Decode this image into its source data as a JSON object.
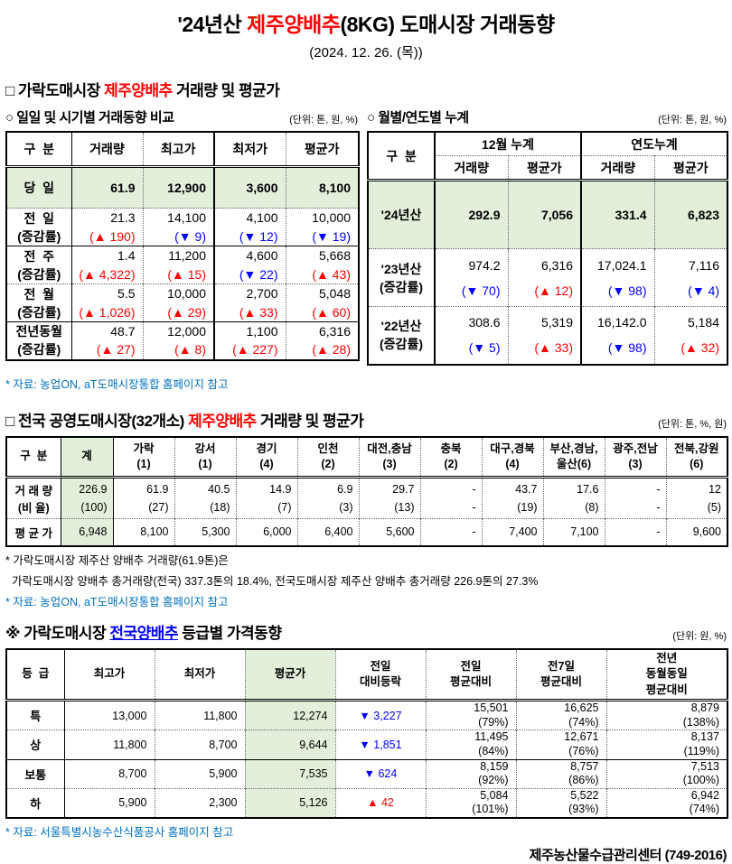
{
  "colors": {
    "accent_red": "#ff0000",
    "link_blue": "#0000ff",
    "note_blue": "#0070c0",
    "green_bg": "#e2efda",
    "change_up": "#ff0000",
    "change_down": "#0000ff"
  },
  "title": {
    "prefix": "'24년산 ",
    "highlight": "제주양배추",
    "suffix": "(8KG) 도매시장 거래동향",
    "date": "(2024. 12. 26. (목))"
  },
  "section1": {
    "heading_prefix": "□ 가락도매시장 ",
    "heading_highlight": "제주양배추",
    "heading_suffix": " 거래량 및 평균가",
    "daily": {
      "subtitle": "○ 일일 및 시기별 거래동향 비교",
      "unit": "(단위: 톤, 원, %)",
      "columns": [
        "구  분",
        "거래량",
        "최고가",
        "최저가",
        "평균가"
      ],
      "rows": [
        {
          "label": "당  일",
          "sub": null,
          "values": [
            "61.9",
            "12,900",
            "3,600",
            "8,100"
          ],
          "changes": null,
          "green": true
        },
        {
          "label": "전  일",
          "sub": "(증감률)",
          "values": [
            "21.3",
            "14,100",
            "4,100",
            "10,000"
          ],
          "changes": [
            "(▲ 190)",
            "(▼ 9)",
            "(▼ 12)",
            "(▼ 19)"
          ]
        },
        {
          "label": "전  주",
          "sub": "(증감률)",
          "values": [
            "1.4",
            "11,200",
            "4,600",
            "5,668"
          ],
          "changes": [
            "(▲ 4,322)",
            "(▲ 15)",
            "(▼ 22)",
            "(▲ 43)"
          ],
          "sep": "solid"
        },
        {
          "label": "전  월",
          "sub": "(증감률)",
          "values": [
            "5.5",
            "10,000",
            "2,700",
            "5,048"
          ],
          "changes": [
            "(▲ 1,026)",
            "(▲ 29)",
            "(▲ 33)",
            "(▲ 60)"
          ]
        },
        {
          "label": "전년동월",
          "sub": "(증감률)",
          "values": [
            "48.7",
            "12,000",
            "1,100",
            "6,316"
          ],
          "changes": [
            "(▲ 27)",
            "(▲ 8)",
            "(▲ 227)",
            "(▲ 28)"
          ],
          "sep": "solid"
        }
      ]
    },
    "cumulative": {
      "subtitle": "○ 월별/연도별 누계",
      "unit": "(단위: 톤, 원, %)",
      "header_label": "구  분",
      "group1": "12월 누계",
      "group2": "연도누계",
      "sub_columns": [
        "거래량",
        "평균가",
        "거래량",
        "평균가"
      ],
      "rows": [
        {
          "label": "'24년산",
          "sub": null,
          "values": [
            "292.9",
            "7,056",
            "331.4",
            "6,823"
          ],
          "changes": null,
          "green": true
        },
        {
          "label": "'23년산",
          "sub": "(증감률)",
          "values": [
            "974.2",
            "6,316",
            "17,024.1",
            "7,116"
          ],
          "changes": [
            "(▼ 70)",
            "(▲ 12)",
            "(▼ 98)",
            "(▼ 4)"
          ]
        },
        {
          "label": "'22년산",
          "sub": "(증감률)",
          "values": [
            "308.6",
            "5,319",
            "16,142.0",
            "5,184"
          ],
          "changes": [
            "(▼ 5)",
            "(▲ 33)",
            "(▼ 98)",
            "(▲ 32)"
          ]
        }
      ]
    },
    "source_note": "* 자료: 농업ON, aT도매시장통합 홈페이지 참고"
  },
  "section2": {
    "heading_prefix": "□ 전국 공영도매시장(32개소) ",
    "heading_highlight": "제주양배추",
    "heading_suffix": " 거래량 및 평균가",
    "unit": "(단위: 톤, %, 원)",
    "columns": [
      {
        "l1": "구  분",
        "l2": null
      },
      {
        "l1": "계",
        "l2": null,
        "green": true
      },
      {
        "l1": "가락",
        "l2": "(1)"
      },
      {
        "l1": "강서",
        "l2": "(1)"
      },
      {
        "l1": "경기",
        "l2": "(4)"
      },
      {
        "l1": "인천",
        "l2": "(2)"
      },
      {
        "l1": "대전,충남",
        "l2": "(3)"
      },
      {
        "l1": "충북",
        "l2": "(2)"
      },
      {
        "l1": "대구,경북",
        "l2": "(4)"
      },
      {
        "l1": "부산,경남,",
        "l2": "울산(6)"
      },
      {
        "l1": "광주,전남",
        "l2": "(3)"
      },
      {
        "l1": "전북,강원",
        "l2": "(6)"
      }
    ],
    "volume_row": {
      "label": "거 래 량",
      "sub": "(비 율)",
      "values": [
        "226.9",
        "61.9",
        "40.5",
        "14.9",
        "6.9",
        "29.7",
        "-",
        "43.7",
        "17.6",
        "-",
        "12"
      ],
      "ratios": [
        "(100)",
        "(27)",
        "(18)",
        "(7)",
        "(3)",
        "(13)",
        "-",
        "(19)",
        "(8)",
        "-",
        "(5)"
      ]
    },
    "avg_row": {
      "label": "평 균 가",
      "values": [
        "6,948",
        "8,100",
        "5,300",
        "6,000",
        "6,400",
        "5,600",
        "-",
        "7,400",
        "7,100",
        "-",
        "9,600"
      ]
    },
    "note_line1": "* 가락도매시장 제주산 양배추 거래량(61.9톤)은",
    "note_line2": "  가락도매시장 양배추 총거래량(전국) 337.3톤의 18.4%, 전국도매시장 제주산 양배추 총거래량 226.9톤의 27.3%",
    "source_note": "* 자료: 농업ON, aT도매시장통합 홈페이지 참고"
  },
  "section3": {
    "heading_prefix": "※ 가락도매시장 ",
    "heading_link": "전국양배추",
    "heading_suffix": " 등급별 가격동향",
    "unit": "(단위: 원, %)",
    "columns": [
      {
        "lines": [
          "등  급"
        ]
      },
      {
        "lines": [
          "최고가"
        ]
      },
      {
        "lines": [
          "최저가"
        ]
      },
      {
        "lines": [
          "평균가"
        ],
        "green": true
      },
      {
        "lines": [
          "전일",
          "대비등락"
        ]
      },
      {
        "lines": [
          "전일",
          "평균대비"
        ]
      },
      {
        "lines": [
          "전7일",
          "평균대비"
        ]
      },
      {
        "lines": [
          "전년",
          "동월동일",
          "평균대비"
        ]
      }
    ],
    "rows": [
      {
        "grade": "특",
        "high": "13,000",
        "low": "11,800",
        "avg": "12,274",
        "change": "▼ 3,227",
        "d1": [
          "15,501",
          "(79%)"
        ],
        "d7": [
          "16,625",
          "(74%)"
        ],
        "dy": [
          "8,879",
          "(138%)"
        ]
      },
      {
        "grade": "상",
        "high": "11,800",
        "low": "8,700",
        "avg": "9,644",
        "change": "▼ 1,851",
        "d1": [
          "11,495",
          "(84%)"
        ],
        "d7": [
          "12,671",
          "(76%)"
        ],
        "dy": [
          "8,137",
          "(119%)"
        ]
      },
      {
        "grade": "보통",
        "high": "8,700",
        "low": "5,900",
        "avg": "7,535",
        "change": "▼ 624",
        "d1": [
          "8,159",
          "(92%)"
        ],
        "d7": [
          "8,757",
          "(86%)"
        ],
        "dy": [
          "7,513",
          "(100%)"
        ],
        "sep": "solid"
      },
      {
        "grade": "하",
        "high": "5,900",
        "low": "2,300",
        "avg": "5,126",
        "change": "▲ 42",
        "d1": [
          "5,084",
          "(101%)"
        ],
        "d7": [
          "5,522",
          "(93%)"
        ],
        "dy": [
          "6,942",
          "(74%)"
        ]
      }
    ],
    "source_note": "* 자료: 서울특별시농수산식품공사 홈페이지 참고"
  },
  "footer": "제주농산물수급관리센터 (749-2016)"
}
